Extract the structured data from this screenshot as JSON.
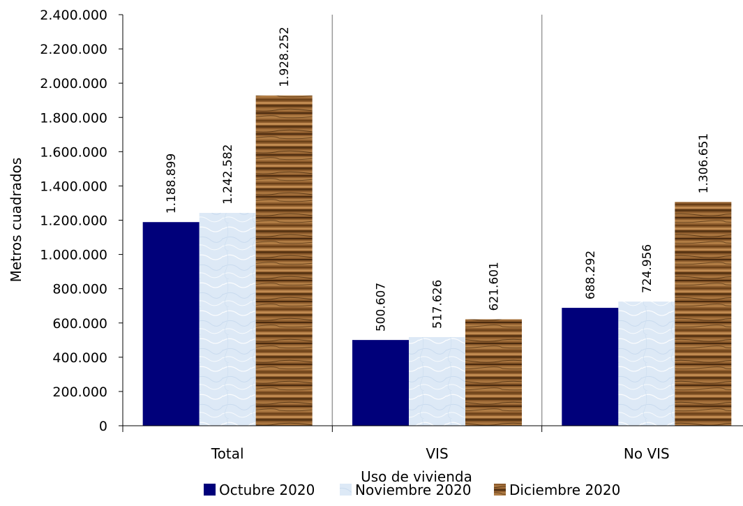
{
  "chart_data": {
    "type": "bar",
    "title": "",
    "xlabel": "Uso de vivienda",
    "ylabel": "Metros cuadrados",
    "ylim": [
      0,
      2400000
    ],
    "y_ticks": [
      0,
      200000,
      400000,
      600000,
      800000,
      1000000,
      1200000,
      1400000,
      1600000,
      1800000,
      2000000,
      2200000,
      2400000
    ],
    "y_tick_labels": [
      "0",
      "200.000",
      "400.000",
      "600.000",
      "800.000",
      "1.000.000",
      "1.200.000",
      "1.400.000",
      "1.600.000",
      "1.800.000",
      "2.000.000",
      "2.200.000",
      "2.400.000"
    ],
    "categories": [
      "Total",
      "VIS",
      "No VIS"
    ],
    "series": [
      {
        "name": "Octubre 2020",
        "color": "#00007a",
        "fill": "solid",
        "values": [
          1188899,
          500607,
          688292
        ],
        "labels": [
          "1.188.899",
          "500.607",
          "688.292"
        ]
      },
      {
        "name": "Noviembre 2020",
        "color": "#dbe8f6",
        "fill": "light-blue-texture",
        "values": [
          1242582,
          517626,
          724956
        ],
        "labels": [
          "1.242.582",
          "517.626",
          "724.956"
        ]
      },
      {
        "name": "Diciembre 2020",
        "color": "#8a5a2b",
        "fill": "wood-texture",
        "values": [
          1928252,
          621601,
          1306651
        ],
        "labels": [
          "1.928.252",
          "621.601",
          "1.306.651"
        ]
      }
    ],
    "grid": false,
    "category_separators": true,
    "legend_position": "bottom"
  }
}
